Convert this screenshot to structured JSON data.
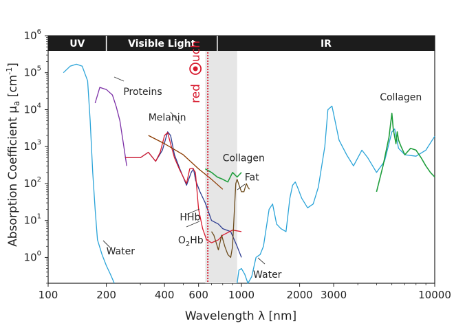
{
  "chart_data": {
    "type": "line",
    "title": "",
    "xlabel": "Wavelength λ [nm]",
    "ylabel": "Absorption Coefficient μa [cm-1]",
    "xlabel_main": "Wavelength ",
    "xlabel_symbol": "λ",
    "xlabel_unit": " [nm]",
    "ylabel_main": "Absorption Coefficient μ",
    "ylabel_sub": "a",
    "ylabel_unit": " [cm",
    "ylabel_exp": "-1",
    "ylabel_close": "]",
    "x_scale": "log",
    "y_scale": "log",
    "xlim": [
      100,
      10000
    ],
    "ylim": [
      0.2,
      1000000
    ],
    "x_ticks": [
      100,
      200,
      400,
      600,
      1000,
      2000,
      3000,
      10000
    ],
    "x_tick_labels": [
      "100",
      "200",
      "400",
      "600",
      "1000",
      "2000",
      "3000",
      "10000"
    ],
    "y_ticks": [
      {
        "value": 1,
        "base": "10",
        "exp": "0"
      },
      {
        "value": 10,
        "base": "10",
        "exp": "1"
      },
      {
        "value": 100,
        "base": "10",
        "exp": "2"
      },
      {
        "value": 1000,
        "base": "10",
        "exp": "3"
      },
      {
        "value": 10000,
        "base": "10",
        "exp": "4"
      },
      {
        "value": 100000,
        "base": "10",
        "exp": "5"
      },
      {
        "value": 1000000,
        "base": "10",
        "exp": "6"
      }
    ],
    "bands": [
      {
        "label": "UV",
        "from": 100,
        "to": 200
      },
      {
        "label": "Visible Light",
        "from": 200,
        "to": 750
      },
      {
        "label": "IR",
        "from": 750,
        "to": 10000
      }
    ],
    "highlight_region": {
      "from": 650,
      "to": 950,
      "color": "#e6e6e6"
    },
    "marker_line": {
      "x": 670,
      "color": "#d7192d",
      "style": "dotted"
    },
    "logo": {
      "text_before": "red",
      "text_after": "uch",
      "color": "#d7192d"
    },
    "series": [
      {
        "name": "Water",
        "color": "#29a3d8",
        "label_at": [
          140,
          1.4
        ],
        "points": [
          [
            120,
            100000
          ],
          [
            130,
            150000
          ],
          [
            140,
            170000
          ],
          [
            150,
            150000
          ],
          [
            160,
            60000
          ],
          [
            165,
            5000
          ],
          [
            170,
            200
          ],
          [
            175,
            20
          ],
          [
            180,
            3
          ],
          [
            190,
            1.2
          ],
          [
            200,
            0.6
          ],
          [
            210,
            0.35
          ],
          [
            220,
            0.2
          ]
        ]
      },
      {
        "name": "Water",
        "color": "#29a3d8",
        "label_at": [
          1080,
          0.28
        ],
        "points": [
          [
            950,
            0.2
          ],
          [
            970,
            0.45
          ],
          [
            1000,
            0.5
          ],
          [
            1040,
            0.35
          ],
          [
            1080,
            0.2
          ],
          [
            1130,
            0.3
          ],
          [
            1190,
            1.0
          ],
          [
            1250,
            1.2
          ],
          [
            1300,
            2.0
          ],
          [
            1390,
            20
          ],
          [
            1450,
            28
          ],
          [
            1520,
            8
          ],
          [
            1600,
            6
          ],
          [
            1700,
            5
          ],
          [
            1780,
            40
          ],
          [
            1840,
            90
          ],
          [
            1900,
            110
          ],
          [
            1950,
            80
          ],
          [
            2050,
            40
          ],
          [
            2200,
            22
          ],
          [
            2350,
            28
          ],
          [
            2500,
            80
          ],
          [
            2700,
            1000
          ],
          [
            2800,
            10000
          ],
          [
            2940,
            12500
          ],
          [
            3050,
            5000
          ],
          [
            3200,
            1500
          ],
          [
            3500,
            600
          ],
          [
            3800,
            300
          ],
          [
            4200,
            800
          ],
          [
            4500,
            500
          ],
          [
            5000,
            200
          ],
          [
            5500,
            400
          ],
          [
            6000,
            2500
          ],
          [
            6200,
            3000
          ],
          [
            6500,
            900
          ],
          [
            7000,
            600
          ],
          [
            8000,
            550
          ],
          [
            9000,
            800
          ],
          [
            10000,
            1900
          ]
        ]
      },
      {
        "name": "Proteins",
        "color": "#7b2ea6",
        "label_at": [
          250,
          30000
        ],
        "points": [
          [
            175,
            15000
          ],
          [
            185,
            40000
          ],
          [
            200,
            35000
          ],
          [
            215,
            25000
          ],
          [
            225,
            12000
          ],
          [
            235,
            5000
          ],
          [
            245,
            1200
          ],
          [
            255,
            300
          ]
        ]
      },
      {
        "name": "HHb",
        "color": "#2b3a8f",
        "label_at": [
          560,
          12
        ],
        "points": [
          [
            250,
            500
          ],
          [
            300,
            500
          ],
          [
            330,
            700
          ],
          [
            360,
            400
          ],
          [
            390,
            800
          ],
          [
            415,
            2500
          ],
          [
            430,
            2000
          ],
          [
            450,
            600
          ],
          [
            480,
            250
          ],
          [
            520,
            90
          ],
          [
            550,
            200
          ],
          [
            565,
            250
          ],
          [
            580,
            120
          ],
          [
            610,
            60
          ],
          [
            650,
            30
          ],
          [
            700,
            10
          ],
          [
            760,
            8
          ],
          [
            800,
            6
          ],
          [
            880,
            5
          ],
          [
            950,
            2
          ],
          [
            1000,
            1
          ]
        ]
      },
      {
        "name": "O2Hb",
        "color": "#d7192d",
        "label_at": [
          560,
          3
        ],
        "points": [
          [
            250,
            500
          ],
          [
            300,
            500
          ],
          [
            330,
            700
          ],
          [
            360,
            400
          ],
          [
            380,
            700
          ],
          [
            400,
            2000
          ],
          [
            415,
            2400
          ],
          [
            430,
            1200
          ],
          [
            450,
            500
          ],
          [
            480,
            230
          ],
          [
            520,
            100
          ],
          [
            540,
            250
          ],
          [
            560,
            260
          ],
          [
            578,
            200
          ],
          [
            600,
            20
          ],
          [
            630,
            6
          ],
          [
            660,
            3
          ],
          [
            700,
            2.5
          ],
          [
            760,
            3
          ],
          [
            800,
            4
          ],
          [
            900,
            5.5
          ],
          [
            1000,
            5
          ]
        ]
      },
      {
        "name": "Melanin",
        "color": "#8b3a00",
        "label_at": [
          330,
          4500
        ],
        "points": [
          [
            330,
            2000
          ],
          [
            400,
            1200
          ],
          [
            500,
            600
          ],
          [
            600,
            250
          ],
          [
            700,
            130
          ],
          [
            800,
            70
          ]
        ]
      },
      {
        "name": "Collagen",
        "color": "#1f9e3c",
        "label_at": [
          860,
          420
        ],
        "points": [
          [
            650,
            250
          ],
          [
            700,
            200
          ],
          [
            750,
            150
          ],
          [
            800,
            130
          ],
          [
            850,
            110
          ],
          [
            900,
            200
          ],
          [
            950,
            150
          ],
          [
            1000,
            200
          ]
        ]
      },
      {
        "name": "Collagen",
        "color": "#1f9e3c",
        "label_at": [
          5000,
          13000
        ],
        "points": [
          [
            5000,
            60
          ],
          [
            5400,
            300
          ],
          [
            5800,
            1800
          ],
          [
            6000,
            8000
          ],
          [
            6100,
            3000
          ],
          [
            6300,
            1200
          ],
          [
            6400,
            2500
          ],
          [
            6500,
            1500
          ],
          [
            6700,
            1000
          ],
          [
            7000,
            600
          ],
          [
            7500,
            900
          ],
          [
            8000,
            800
          ],
          [
            8500,
            500
          ],
          [
            9000,
            300
          ],
          [
            9500,
            200
          ],
          [
            10000,
            150
          ]
        ]
      },
      {
        "name": "Fat",
        "color": "#6b4a1a",
        "label_at": [
          1060,
          130
        ],
        "points": [
          [
            700,
            5
          ],
          [
            720,
            4
          ],
          [
            760,
            1.6
          ],
          [
            790,
            4
          ],
          [
            820,
            2
          ],
          [
            850,
            1.2
          ],
          [
            880,
            1.0
          ],
          [
            900,
            2
          ],
          [
            920,
            20
          ],
          [
            935,
            100
          ],
          [
            950,
            130
          ],
          [
            980,
            80
          ],
          [
            1000,
            60
          ],
          [
            1030,
            60
          ],
          [
            1060,
            100
          ],
          [
            1080,
            80
          ],
          [
            1100,
            70
          ]
        ]
      }
    ],
    "annotations": [
      {
        "text": "Water",
        "at": [
          200,
          1.2
        ],
        "series_index": 0
      },
      {
        "text": "Water",
        "at": [
          1150,
          0.28
        ],
        "series_index": 1
      },
      {
        "text": "Proteins",
        "at": [
          245,
          25000
        ],
        "series_index": 2
      },
      {
        "text": "HHb",
        "at": [
          480,
          10
        ],
        "series_index": 3
      },
      {
        "text": "Melanin",
        "at": [
          330,
          5000
        ],
        "series_index": 5
      },
      {
        "text": "Collagen",
        "at": [
          800,
          400
        ],
        "series_index": 6
      },
      {
        "text": "Collagen",
        "at": [
          5200,
          18000
        ],
        "series_index": 7
      },
      {
        "text": "Fat",
        "at": [
          1040,
          120
        ],
        "series_index": 8
      }
    ],
    "o2hb_label": {
      "base": "O",
      "sub": "2",
      "rest": "Hb",
      "at": [
        470,
        2.4
      ],
      "series_index": 4
    },
    "grid": false,
    "legend": "none"
  }
}
